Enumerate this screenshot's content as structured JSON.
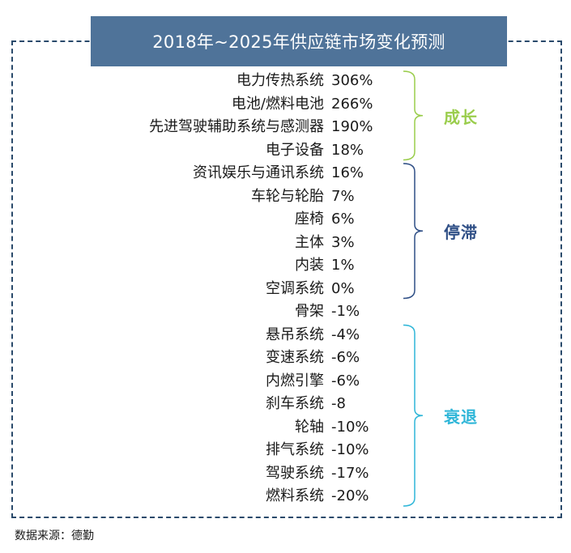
{
  "title": "2018年~2025年供应链市场变化预测",
  "chart_data": {
    "type": "table",
    "rows": [
      {
        "name": "电力传热系统",
        "value": "306%"
      },
      {
        "name": "电池/燃料电池",
        "value": "266%"
      },
      {
        "name": "先进驾驶辅助系统与感测器",
        "value": "190%"
      },
      {
        "name": "电子设备",
        "value": "18%"
      },
      {
        "name": "资讯娱乐与通讯系统",
        "value": "16%"
      },
      {
        "name": "车轮与轮胎",
        "value": "7%"
      },
      {
        "name": "座椅",
        "value": "6%"
      },
      {
        "name": "主体",
        "value": "3%"
      },
      {
        "name": "内装",
        "value": "1%"
      },
      {
        "name": "空调系统",
        "value": "0%"
      },
      {
        "name": "骨架",
        "value": "-1%"
      },
      {
        "name": "悬吊系统",
        "value": "-4%"
      },
      {
        "name": "变速系统",
        "value": "-6%"
      },
      {
        "name": "内燃引擎",
        "value": "-6%"
      },
      {
        "name": "刹车系统",
        "value": "-8"
      },
      {
        "name": "轮轴",
        "value": "-10%"
      },
      {
        "name": "排气系统",
        "value": "-10%"
      },
      {
        "name": "驾驶系统",
        "value": "-17%"
      },
      {
        "name": "燃料系统",
        "value": "-20%"
      }
    ],
    "groups": [
      {
        "label": "成长",
        "first_row": 0,
        "last_row": 3,
        "color": "#9acd4c"
      },
      {
        "label": "停滞",
        "first_row": 4,
        "last_row": 9,
        "color": "#2f4f86"
      },
      {
        "label": "衰退",
        "first_row": 11,
        "last_row": 18,
        "color": "#2fb6d8"
      }
    ]
  },
  "source": "数据来源：德勤",
  "colors": {
    "title_bg": "#4f7399",
    "frame": "#2a4a6b"
  }
}
